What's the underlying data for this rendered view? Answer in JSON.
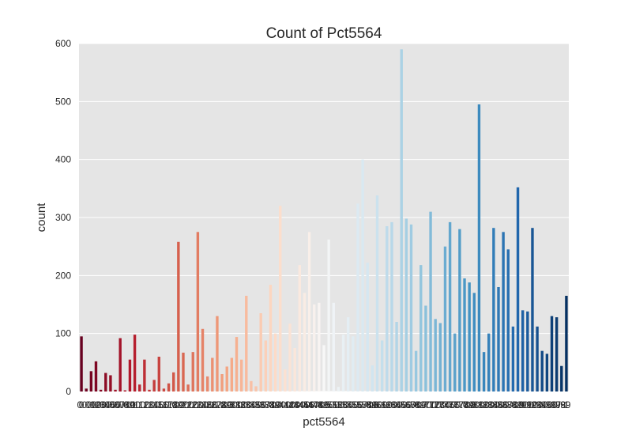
{
  "chart_data": {
    "type": "bar",
    "title": "Count of Pct5564",
    "xlabel": "pct5564",
    "ylabel": "count",
    "ylim": [
      0,
      600
    ],
    "yticks": [
      0,
      100,
      200,
      300,
      400,
      500,
      600
    ],
    "grid": true,
    "background": "#e5e5e5",
    "palette": "RdBu",
    "palette_colors": [
      "#67001f",
      "#b2182b",
      "#d6604d",
      "#f4a582",
      "#fddbc7",
      "#f7f7f7",
      "#d1e5f0",
      "#92c5de",
      "#4393c3",
      "#2166ac",
      "#053061"
    ],
    "categories": [
      "0",
      "0.01",
      "0.02",
      "0.03",
      "0.04",
      "0.05",
      "0.06",
      "0.07",
      "0.08",
      "0.09",
      "0.1",
      "0.11",
      "0.12",
      "0.13",
      "0.14",
      "0.15",
      "0.16",
      "0.17",
      "0.18",
      "0.19",
      "0.2",
      "0.21",
      "0.22",
      "0.23",
      "0.24",
      "0.25",
      "0.26",
      "0.27",
      "0.28",
      "0.29",
      "0.3",
      "0.31",
      "0.32",
      "0.33",
      "0.34",
      "0.35",
      "0.36",
      "0.37",
      "0.38",
      "0.39",
      "0.4",
      "0.41",
      "0.42",
      "0.43",
      "0.44",
      "0.45",
      "0.46",
      "0.47",
      "0.48",
      "0.49",
      "0.5",
      "0.51",
      "0.52",
      "0.53",
      "0.54",
      "0.55",
      "0.56",
      "0.57",
      "0.58",
      "0.59",
      "0.6",
      "0.61",
      "0.62",
      "0.63",
      "0.64",
      "0.65",
      "0.66",
      "0.67",
      "0.68",
      "0.69",
      "0.7",
      "0.71",
      "0.72",
      "0.73",
      "0.74",
      "0.75",
      "0.76",
      "0.77",
      "0.78",
      "0.79",
      "0.8",
      "0.81",
      "0.82",
      "0.83",
      "0.84",
      "0.85",
      "0.86",
      "0.87",
      "0.88",
      "0.89",
      "0.9",
      "0.91",
      "0.92",
      "0.93",
      "0.94",
      "0.95",
      "0.96",
      "0.97",
      "0.98",
      "0.99",
      "1"
    ],
    "values": [
      95,
      5,
      35,
      52,
      3,
      32,
      28,
      3,
      92,
      2,
      55,
      98,
      12,
      55,
      3,
      20,
      60,
      5,
      14,
      33,
      258,
      67,
      12,
      68,
      275,
      108,
      26,
      58,
      130,
      30,
      43,
      58,
      94,
      55,
      165,
      18,
      9,
      135,
      88,
      184,
      100,
      320,
      38,
      117,
      75,
      218,
      170,
      275,
      150,
      153,
      80,
      262,
      153,
      8,
      98,
      128,
      95,
      324,
      400,
      222,
      45,
      338,
      88,
      285,
      292,
      120,
      590,
      298,
      288,
      70,
      218,
      148,
      310,
      125,
      118,
      250,
      292,
      100,
      280,
      195,
      188,
      170,
      495,
      68,
      100,
      282,
      180,
      275,
      245,
      112,
      352,
      140,
      138,
      282,
      112,
      70,
      65,
      130,
      128,
      44,
      165
    ]
  }
}
